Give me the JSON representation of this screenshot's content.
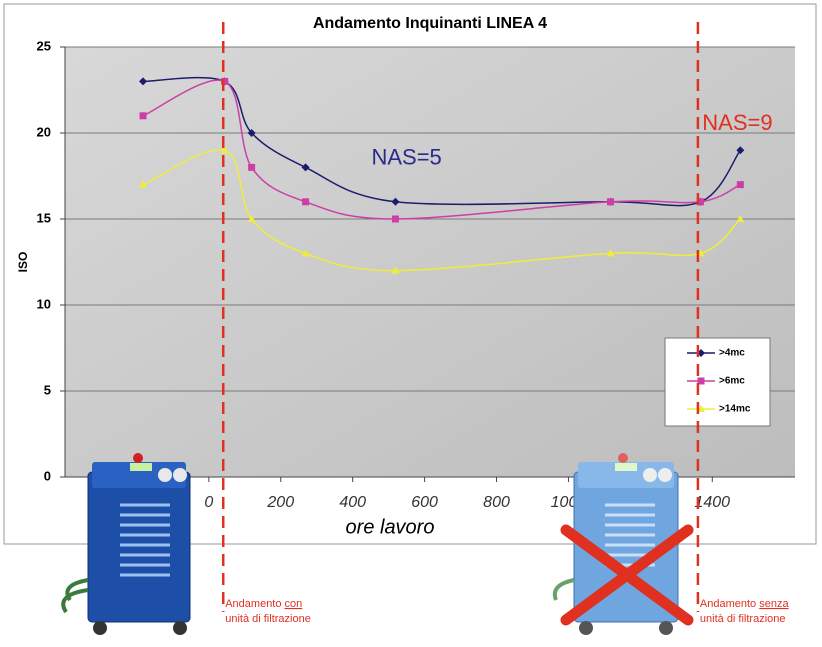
{
  "chart_data": {
    "type": "line",
    "title": "Andamento Inquinanti LINEA 4",
    "x_label": "ore lavoro",
    "y_label": "ISO",
    "x": [
      -183,
      44,
      119,
      269,
      519,
      1117,
      1367,
      1478
    ],
    "series": [
      {
        "name": ">4mc",
        "color": "#1c1c6e",
        "marker": "diamond",
        "values": [
          23,
          23,
          20,
          18,
          16,
          16,
          16,
          19
        ]
      },
      {
        "name": ">6mc",
        "color": "#cc3fa6",
        "marker": "square",
        "values": [
          21,
          23,
          18,
          16,
          15,
          16,
          16,
          17
        ]
      },
      {
        "name": ">14mc",
        "color": "#eeee3a",
        "marker": "triangle",
        "values": [
          17,
          19,
          15,
          13,
          12,
          13,
          13,
          15
        ]
      }
    ],
    "xlim": [
      -400,
      1630
    ],
    "ylim": [
      0,
      25
    ],
    "xticks": [
      0,
      200,
      400,
      600,
      800,
      1000,
      1200,
      1400
    ],
    "yticks": [
      0,
      5,
      10,
      15,
      20,
      25
    ],
    "grid": true,
    "legend": "right",
    "reference_lines": [
      {
        "x": 40,
        "color": "#e03020"
      },
      {
        "x": 1360,
        "color": "#e03020"
      }
    ],
    "annotations": [
      {
        "text": "NAS=5",
        "x": 550,
        "y": 18.5,
        "color": "#2a2a8a"
      },
      {
        "text": "NAS=9",
        "x": 1470,
        "y": 20.5,
        "color": "#e03020"
      }
    ],
    "notes": [
      {
        "start": "Andamento ",
        "emph": "con",
        "end": "unità di filtrazione"
      },
      {
        "start": "Andamento ",
        "emph": "senza",
        "end": "unità di filtrazione"
      }
    ]
  }
}
